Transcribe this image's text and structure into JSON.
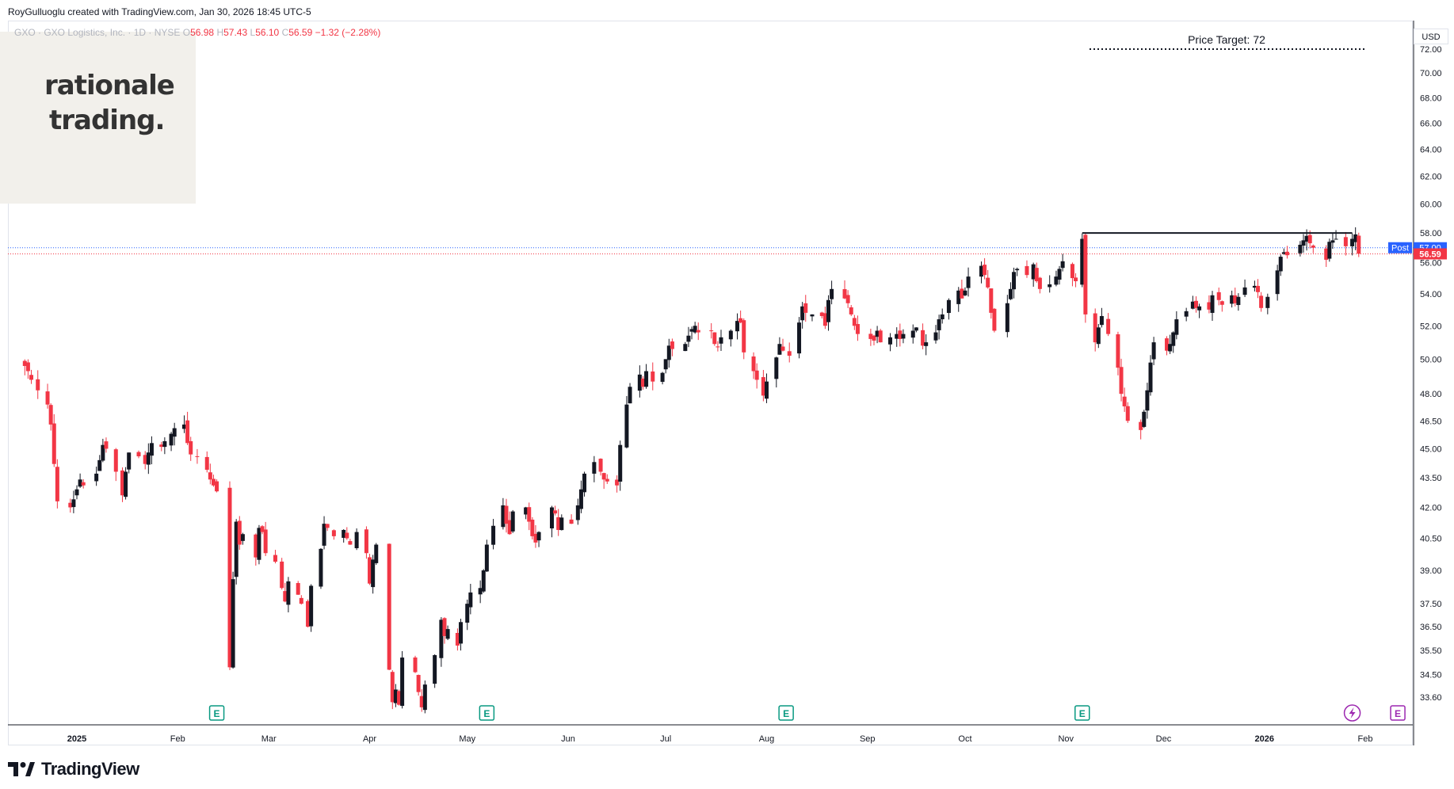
{
  "attribution": "RoyGulluoglu created with TradingView.com, Jan 30, 2026 18:45 UTC-5",
  "legend": {
    "symbol": "GXO · GXO Logistics, Inc. · 1D · NYSE",
    "open_label": "O",
    "open": "56.98",
    "high_label": "H",
    "high": "57.43",
    "low_label": "L",
    "low": "56.10",
    "close_label": "C",
    "close": "56.59",
    "change": "−1.32 (−2.28%)"
  },
  "watermark": {
    "line1": "rationale",
    "line2": "trading."
  },
  "currency": "USD",
  "annotation": {
    "text": "Price Target: 72"
  },
  "brand": {
    "name": "TradingView"
  },
  "price_tags": {
    "post_label": "Post",
    "post_value": "57.00",
    "last_value": "56.59"
  },
  "colors": {
    "up": "#131722",
    "down": "#f23645",
    "post": "#2962ff",
    "earnings": "#089981",
    "dividend": "#9c27b0"
  },
  "event_markers": [
    {
      "icon": "earnings-icon",
      "label": "E",
      "date": "2025-02-13"
    },
    {
      "icon": "earnings-icon",
      "label": "E",
      "date": "2025-05-07"
    },
    {
      "icon": "earnings-icon",
      "label": "E",
      "date": "2025-08-07"
    },
    {
      "icon": "earnings-icon",
      "label": "E",
      "date": "2025-11-06"
    },
    {
      "icon": "lightning-icon",
      "label": "",
      "date": "2026-01-28"
    },
    {
      "icon": "earnings-icon",
      "label": "E",
      "date": "2026-02-11"
    }
  ],
  "chart_data": {
    "type": "candlestick",
    "scale": "log",
    "y_ticks": [
      "72.00",
      "70.00",
      "68.00",
      "66.00",
      "64.00",
      "62.00",
      "60.00",
      "58.00",
      "56.00",
      "54.00",
      "52.00",
      "50.00",
      "48.00",
      "46.50",
      "45.00",
      "43.50",
      "42.00",
      "40.50",
      "39.00",
      "37.50",
      "36.50",
      "35.50",
      "34.50",
      "33.60"
    ],
    "x_ticks": [
      "2025",
      "Feb",
      "Mar",
      "Apr",
      "May",
      "Jun",
      "Jul",
      "Aug",
      "Sep",
      "Oct",
      "Nov",
      "Dec",
      "2026",
      "Feb"
    ],
    "price_target": 72,
    "resistance": 58,
    "resistance_from": "2025-11-06",
    "last_close": 56.59,
    "post_market": 57.0,
    "closes": [
      49.6,
      49.3,
      48.8,
      48.2,
      47.4,
      46.3,
      44.2,
      42.3,
      42.0,
      42.4,
      42.9,
      43.4,
      43.1,
      43.7,
      44.4,
      45.2,
      45.0,
      43.8,
      42.6,
      43.8,
      44.8,
      44.6,
      44.2,
      44.8,
      45.3,
      45.1,
      45.4,
      45.8,
      46.1,
      46.3,
      45.3,
      44.7,
      44.6,
      43.9,
      43.4,
      43.1,
      42.8,
      34.8,
      38.6,
      41.3,
      40.2,
      40.7,
      39.6,
      41.0,
      40.8,
      39.8,
      39.4,
      38.2,
      37.6,
      38.5,
      37.9,
      37.5,
      36.5,
      38.3,
      40.0,
      41.2,
      41.0,
      40.6,
      40.9,
      40.5,
      40.2,
      40.8,
      39.8,
      38.4,
      39.5,
      40.2,
      34.7,
      33.4,
      33.9,
      33.3,
      35.2,
      34.6,
      33.8,
      33.2,
      34.1,
      35.3,
      36.8,
      36.1,
      36.4,
      35.7,
      36.7,
      37.5,
      38.0,
      38.2,
      39.0,
      40.2,
      41.1,
      42.1,
      41.2,
      40.7,
      41.8,
      42.0,
      41.3,
      40.6,
      40.3,
      40.8,
      42.0,
      41.7,
      40.9,
      41.5,
      41.2,
      42.1,
      42.9,
      43.7,
      44.3,
      43.8,
      43.4,
      43.3,
      43.1,
      45.2,
      47.4,
      48.4,
      49.1,
      48.4,
      49.3,
      48.7,
      49.2,
      50.0,
      50.8,
      50.6,
      50.9,
      51.4,
      51.8,
      52.0,
      51.6,
      51.7,
      50.9,
      50.7,
      51.3,
      51.7,
      52.3,
      52.2,
      50.4,
      49.3,
      48.8,
      47.9,
      48.7,
      50.1,
      50.9,
      50.5,
      50.2,
      52.2,
      53.2,
      52.8,
      52.7,
      52.6,
      52.0,
      53.6,
      54.3,
      53.7,
      53.4,
      52.7,
      52.0,
      51.5,
      51.2,
      51.1,
      51.7,
      51.0,
      51.3,
      51.5,
      51.2,
      51.5,
      51.7,
      51.9,
      50.8,
      51.0,
      51.6,
      52.4,
      52.7,
      53.6,
      54.2,
      53.7,
      54.2,
      55.1,
      55.8,
      55.2,
      54.4,
      52.8,
      51.7,
      53.4,
      54.3,
      55.4,
      55.6,
      55.2,
      55.9,
      54.8,
      54.3,
      54.6,
      55.1,
      55.6,
      56.1,
      55.0,
      54.8,
      57.6,
      52.7,
      51.0,
      51.9,
      52.6,
      51.5,
      49.5,
      48.0,
      47.3,
      46.5,
      46.0,
      47.0,
      48.2,
      49.8,
      51.0,
      50.5,
      50.9,
      51.6,
      52.4,
      52.9,
      53.5,
      53.1,
      53.2,
      53.0,
      53.9,
      53.6,
      53.3,
      53.9,
      53.4,
      53.8,
      54.4,
      54.5,
      54.1,
      53.1,
      53.8,
      55.5,
      56.4,
      56.7,
      56.5,
      57.2,
      57.5,
      57.8,
      57.3,
      57.0,
      56.2,
      57.4,
      57.5,
      57.6,
      57.1,
      57.6,
      57.9,
      56.6
    ],
    "candles_start": "2024-12-16",
    "candles_end": "2026-01-30",
    "ohlc_last": {
      "open": 56.98,
      "high": 57.43,
      "low": 56.1,
      "close": 56.59,
      "change": -1.32,
      "change_pct": -2.28
    },
    "title": "GXO Logistics, Inc."
  }
}
